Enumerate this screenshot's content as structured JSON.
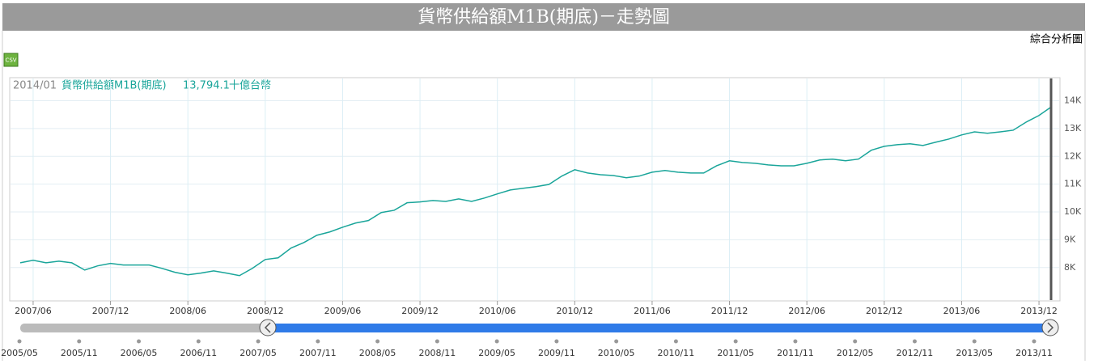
{
  "page_title": "貨幣供給額M1B(期底)－走勢圖",
  "link": "綜合分析圖",
  "csv_button": "CSV",
  "chart_data": {
    "type": "line",
    "tooltip": {
      "date": "2014/01",
      "value_label": "13,794.1",
      "unit": "十億台幣"
    },
    "categories": [
      null,
      "2007/06",
      null,
      null,
      null,
      null,
      null,
      "2007/12",
      null,
      null,
      null,
      null,
      null,
      "2008/06",
      null,
      null,
      null,
      null,
      null,
      "2008/12",
      null,
      null,
      null,
      null,
      null,
      "2009/06",
      null,
      null,
      null,
      null,
      null,
      "2009/12",
      null,
      null,
      null,
      null,
      null,
      "2010/06",
      null,
      null,
      null,
      null,
      null,
      "2010/12",
      null,
      null,
      null,
      null,
      null,
      "2011/06",
      null,
      null,
      null,
      null,
      null,
      "2011/12",
      null,
      null,
      null,
      null,
      null,
      "2012/06",
      null,
      null,
      null,
      null,
      null,
      "2012/12",
      null,
      null,
      null,
      null,
      null,
      "2013/06",
      null,
      null,
      null,
      null,
      null,
      "2013/12",
      null
    ],
    "series": [
      {
        "name": "貨幣供給額M1B(期底)",
        "color": "#1aa59a",
        "values": [
          8170,
          8260,
          8170,
          8230,
          8170,
          7910,
          8060,
          8150,
          8090,
          8090,
          8090,
          7970,
          7830,
          7740,
          7800,
          7880,
          7800,
          7710,
          7970,
          8290,
          8350,
          8700,
          8900,
          9160,
          9280,
          9450,
          9600,
          9690,
          9980,
          10060,
          10330,
          10360,
          10410,
          10380,
          10470,
          10380,
          10500,
          10650,
          10790,
          10850,
          10910,
          10990,
          11290,
          11520,
          11400,
          11340,
          11310,
          11230,
          11290,
          11430,
          11490,
          11430,
          11400,
          11400,
          11660,
          11840,
          11780,
          11750,
          11690,
          11660,
          11660,
          11750,
          11870,
          11900,
          11840,
          11900,
          12220,
          12360,
          12420,
          12450,
          12390,
          12510,
          12620,
          12770,
          12880,
          12830,
          12880,
          12940,
          13230,
          13470,
          13794.1
        ]
      }
    ],
    "ylim": [
      6800,
      14830
    ],
    "yticks": [
      {
        "value": 8000,
        "label": "8K"
      },
      {
        "value": 9000,
        "label": "9K"
      },
      {
        "value": 10000,
        "label": "10K"
      },
      {
        "value": 11000,
        "label": "11K"
      },
      {
        "value": 12000,
        "label": "12K"
      },
      {
        "value": 13000,
        "label": "13K"
      },
      {
        "value": 14000,
        "label": "14K"
      }
    ],
    "grid": true,
    "navigator_labels": [
      "2005/05",
      "2005/11",
      "2006/05",
      "2006/11",
      "2007/05",
      "2007/11",
      "2008/05",
      "2008/11",
      "2009/05",
      "2009/11",
      "2010/05",
      "2010/11",
      "2011/05",
      "2011/11",
      "2012/05",
      "2012/11",
      "2013/05",
      "2013/11"
    ]
  }
}
